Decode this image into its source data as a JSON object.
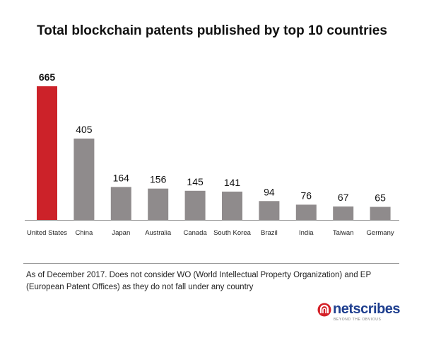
{
  "chart_data": {
    "type": "bar",
    "title": "Total blockchain patents published by top 10 countries",
    "categories": [
      "United States",
      "China",
      "Japan",
      "Australia",
      "Canada",
      "South Korea",
      "Brazil",
      "India",
      "Taiwan",
      "Germany"
    ],
    "values": [
      665,
      405,
      164,
      156,
      145,
      141,
      94,
      76,
      67,
      65
    ],
    "highlight_index": 0,
    "colors": {
      "highlight": "#cc2229",
      "default": "#8f8b8c",
      "axis": "#999999"
    },
    "xlabel": "",
    "ylabel": "",
    "ylim": [
      0,
      665
    ],
    "grid": false,
    "legend": "none"
  },
  "footnote": "As of December 2017. Does not consider WO (World Intellectual Property Organization) and EP (European Patent Offices) as they do not fall under any country",
  "logo": {
    "name": "netscribes",
    "tagline": "BEYOND THE OBVIOUS",
    "icon": "netscribes-logo-icon",
    "colors": {
      "text": "#1f3f8f",
      "mark": "#d42027"
    }
  }
}
